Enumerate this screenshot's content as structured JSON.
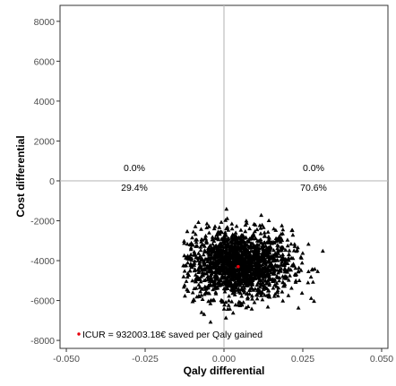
{
  "chart_data": {
    "type": "scatter",
    "xlabel": "Qaly differential",
    "ylabel": "Cost differential",
    "xlim": [
      -0.052,
      0.052
    ],
    "ylim": [
      -8400,
      8800
    ],
    "x_ticks": [
      -0.05,
      -0.025,
      0.0,
      0.025,
      0.05
    ],
    "x_tick_labels": [
      "-0.050",
      "-0.025",
      "0.000",
      "0.025",
      "0.050"
    ],
    "y_ticks": [
      -8000,
      -6000,
      -4000,
      -2000,
      0,
      2000,
      4000,
      6000,
      8000
    ],
    "y_tick_labels": [
      "-8000",
      "-6000",
      "-4000",
      "-2000",
      "0",
      "2000",
      "4000",
      "6000",
      "8000"
    ],
    "reference_lines": {
      "x": 0.0,
      "y": 0
    },
    "grid": false,
    "cloud": {
      "marker": "triangle",
      "color": "#000000",
      "center_x": 0.0045,
      "center_y": -4200,
      "spread_x": 0.0085,
      "spread_y": 850,
      "x_range": [
        -0.013,
        0.036
      ],
      "y_range": [
        -7200,
        -700
      ]
    },
    "point_estimate": {
      "x": 0.0045,
      "y": -4300,
      "color": "#e8000b"
    },
    "quadrant_labels": {
      "upper_left": "0.0%",
      "upper_right": "0.0%",
      "lower_left": "29.4%",
      "lower_right": "70.6%"
    },
    "legend": {
      "text": "ICUR = 932003.18€ saved per Qaly gained",
      "marker_color": "#e8000b",
      "position": "bottom-left"
    }
  }
}
